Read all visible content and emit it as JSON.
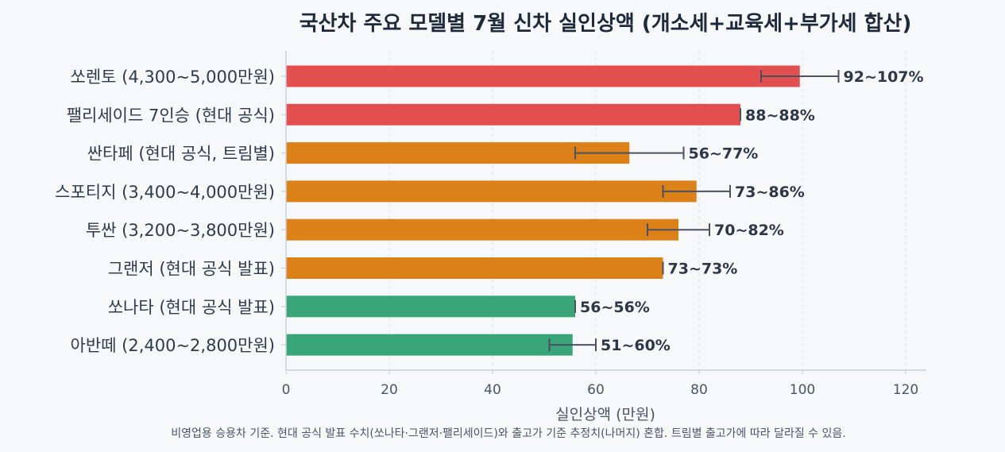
{
  "chart_data": {
    "type": "bar",
    "orientation": "horizontal",
    "title": "국산차 주요 모델별 7월 신차 실인상액 (개소세+교육세+부가세 합산)",
    "xlabel": "실인상액 (만원)",
    "ylabel": "",
    "note": "비영업용 승용차 기준. 현대 공식 발표 수치(쏘나타·그랜저·팰리세이드)와 출고가 기준 추정치(나머지) 혼합. 트림별 출고가에 따라 달라질 수 있음.",
    "xlim": [
      0,
      124
    ],
    "xticks": [
      0,
      20,
      40,
      60,
      80,
      100,
      120
    ],
    "grid": true,
    "categories": [
      "쏘렌토 (4,300~5,000만원)",
      "팰리세이드 7인승 (현대 공식)",
      "싼타페 (현대 공식, 트림별)",
      "스포티지 (3,400~4,000만원)",
      "투싼 (3,200~3,800만원)",
      "그랜저 (현대 공식 발표)",
      "쏘나타 (현대 공식 발표)",
      "아반떼 (2,400~2,800만원)"
    ],
    "values": [
      99.5,
      88,
      66.5,
      79.5,
      76,
      73,
      56,
      55.5
    ],
    "error_low": [
      92,
      88,
      56,
      73,
      70,
      73,
      56,
      51
    ],
    "error_high": [
      107,
      88,
      77,
      86,
      82,
      73,
      56,
      60
    ],
    "data_labels": [
      "92~107%",
      "88~88%",
      "56~77%",
      "73~86%",
      "70~82%",
      "73~73%",
      "56~56%",
      "51~60%"
    ],
    "colors": [
      "#e34f4f",
      "#e34f4f",
      "#dc8118",
      "#dc8118",
      "#dc8118",
      "#dc8118",
      "#3aa57a",
      "#3aa57a"
    ]
  }
}
